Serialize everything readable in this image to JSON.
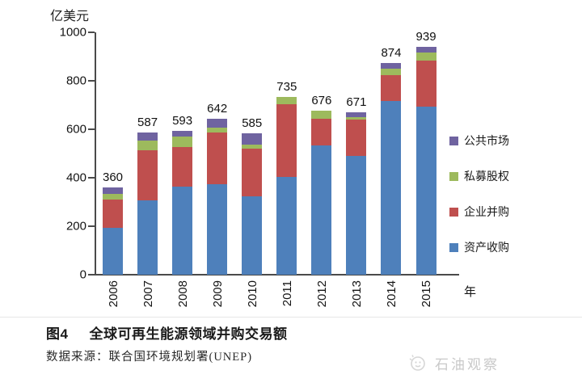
{
  "chart_data": {
    "type": "bar",
    "stacked": true,
    "y_axis_title": "亿美元",
    "x_axis_title": "年",
    "categories": [
      "2006",
      "2007",
      "2008",
      "2009",
      "2010",
      "2011",
      "2012",
      "2013",
      "2014",
      "2015"
    ],
    "totals": [
      360,
      587,
      593,
      642,
      585,
      735,
      676,
      671,
      874,
      939
    ],
    "series": [
      {
        "name": "资产收购",
        "color": "#4E80BB",
        "values": [
          192,
          307,
          362,
          374,
          322,
          405,
          535,
          489,
          716,
          693
        ]
      },
      {
        "name": "企业并购",
        "color": "#BF4F4E",
        "values": [
          118,
          205,
          165,
          212,
          199,
          297,
          108,
          151,
          108,
          191
        ]
      },
      {
        "name": "私募股权",
        "color": "#9DBA5D",
        "values": [
          22,
          40,
          44,
          22,
          16,
          33,
          33,
          11,
          25,
          33
        ]
      },
      {
        "name": "公共市场",
        "color": "#6F63A0",
        "values": [
          28,
          35,
          22,
          34,
          48,
          0,
          0,
          20,
          25,
          22
        ]
      }
    ],
    "legend_order": [
      "公共市场",
      "私募股权",
      "企业并购",
      "资产收购"
    ],
    "ylim": [
      0,
      1000
    ],
    "y_ticks": [
      0,
      200,
      400,
      600,
      800,
      1000
    ],
    "grid": false,
    "legend_position": "right"
  },
  "caption": {
    "figure_label": "图4",
    "title": "全球可再生能源领域并购交易额"
  },
  "source": {
    "text": "数据来源：联合国环境规划署(UNEP)"
  },
  "watermark": {
    "text": "石油观察",
    "icon": "sun-face-doodle-icon"
  },
  "colors": {
    "axis": "#4a4a4a",
    "text": "#1a1a1a",
    "watermark": "#c9c9c9"
  }
}
